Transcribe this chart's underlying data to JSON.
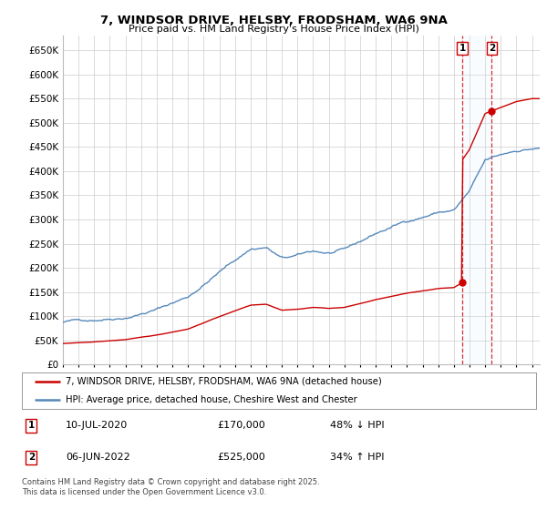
{
  "title": "7, WINDSOR DRIVE, HELSBY, FRODSHAM, WA6 9NA",
  "subtitle": "Price paid vs. HM Land Registry's House Price Index (HPI)",
  "red_color": "#cc0000",
  "blue_color": "#5588bb",
  "shade_color": "#ddeeff",
  "xlim": [
    1995.0,
    2025.5
  ],
  "ylim": [
    0,
    680000
  ],
  "yticks": [
    0,
    50000,
    100000,
    150000,
    200000,
    250000,
    300000,
    350000,
    400000,
    450000,
    500000,
    550000,
    600000,
    650000
  ],
  "xticks": [
    1995,
    1996,
    1997,
    1998,
    1999,
    2000,
    2001,
    2002,
    2003,
    2004,
    2005,
    2006,
    2007,
    2008,
    2009,
    2010,
    2011,
    2012,
    2013,
    2014,
    2015,
    2016,
    2017,
    2018,
    2019,
    2020,
    2021,
    2022,
    2023,
    2024,
    2025
  ],
  "point1_x": 2020.54,
  "point1_y": 170000,
  "point2_x": 2022.42,
  "point2_y": 525000,
  "annotation1_date": "10-JUL-2020",
  "annotation1_price": "£170,000",
  "annotation1_hpi": "48% ↓ HPI",
  "annotation2_date": "06-JUN-2022",
  "annotation2_price": "£525,000",
  "annotation2_hpi": "34% ↑ HPI",
  "legend_line1": "7, WINDSOR DRIVE, HELSBY, FRODSHAM, WA6 9NA (detached house)",
  "legend_line2": "HPI: Average price, detached house, Cheshire West and Chester",
  "footer": "Contains HM Land Registry data © Crown copyright and database right 2025.\nThis data is licensed under the Open Government Licence v3.0.",
  "bg_color": "#ffffff",
  "grid_color": "#cccccc"
}
